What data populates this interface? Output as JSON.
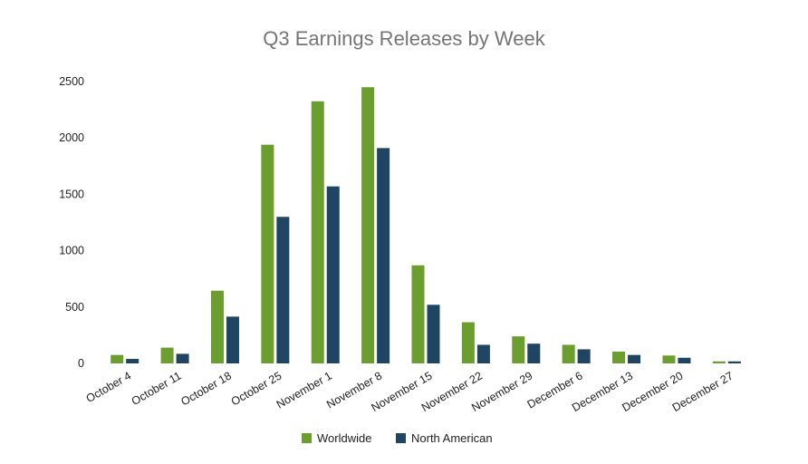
{
  "chart_data": {
    "type": "bar",
    "title": "Q3 Earnings Releases by Week",
    "xlabel": "",
    "ylabel": "",
    "ylim": [
      0,
      2500
    ],
    "yticks": [
      "0",
      "500",
      "1000",
      "1500",
      "2000",
      "2500"
    ],
    "grid": false,
    "legend_position": "bottom",
    "categories": [
      "October 4",
      "October 11",
      "October 18",
      "October 25",
      "November 1",
      "November 8",
      "November 15",
      "November 22",
      "November 29",
      "December 6",
      "December 13",
      "December 20",
      "December 27"
    ],
    "series": [
      {
        "name": "Worldwide",
        "color": "#6b9e2f",
        "values": [
          75,
          140,
          645,
          1940,
          2325,
          2450,
          870,
          365,
          240,
          165,
          105,
          70,
          18
        ]
      },
      {
        "name": "North American",
        "color": "#1f4562",
        "values": [
          40,
          85,
          415,
          1300,
          1570,
          1910,
          520,
          165,
          175,
          125,
          75,
          50,
          18
        ]
      }
    ]
  }
}
